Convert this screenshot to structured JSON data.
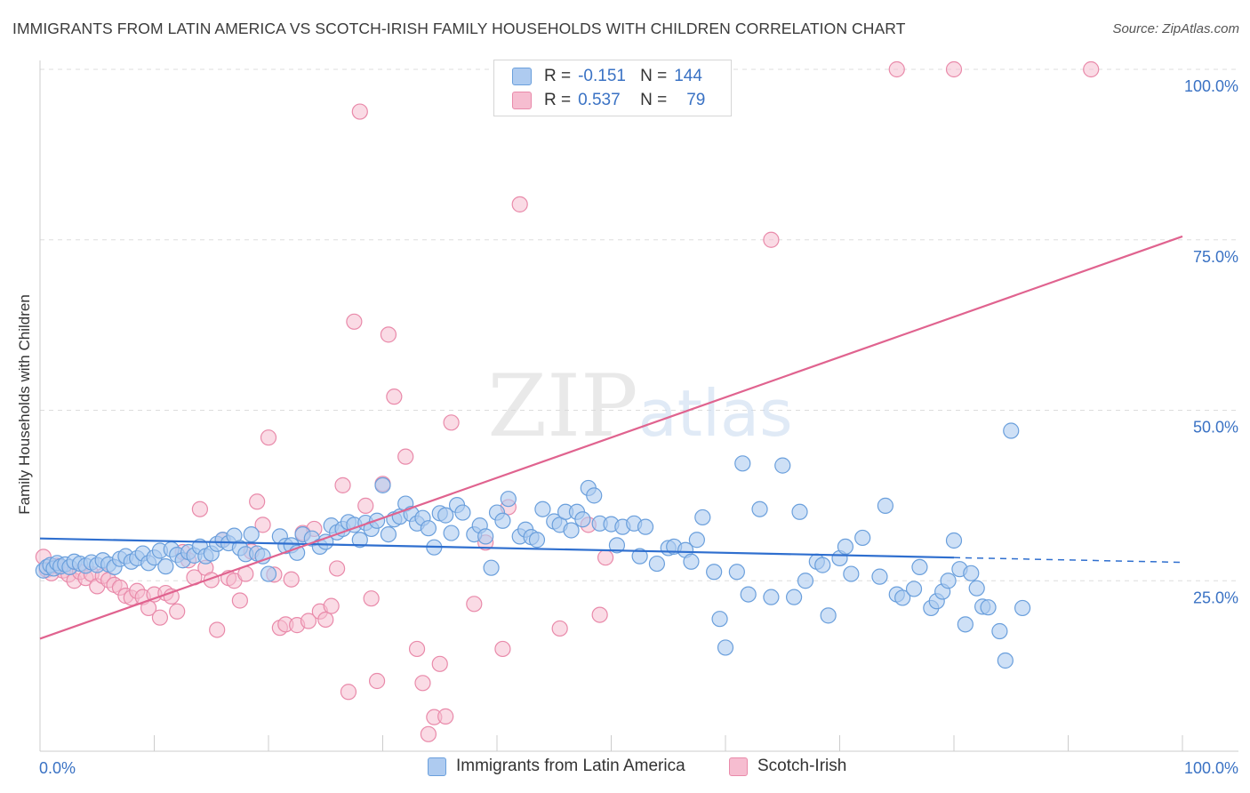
{
  "title": "IMMIGRANTS FROM LATIN AMERICA VS SCOTCH-IRISH FAMILY HOUSEHOLDS WITH CHILDREN CORRELATION CHART",
  "source": "Source: ZipAtlas.com",
  "watermark": "ZIPatlas",
  "legend": {
    "rows": [
      {
        "r_label": "R =",
        "r_value": "-0.151",
        "n_label": "N =",
        "n_value": "144"
      },
      {
        "r_label": "R =",
        "r_value": "0.537",
        "n_label": "N =",
        "n_value": "79"
      }
    ]
  },
  "bottom_legend": {
    "items": [
      {
        "label": "Immigrants from Latin America"
      },
      {
        "label": "Scotch-Irish"
      }
    ]
  },
  "colors": {
    "blue_fill": "#aecbf0",
    "blue_stroke": "#6a9fdc",
    "blue_line": "#2f6fcf",
    "pink_fill": "#f6bdd0",
    "pink_stroke": "#e98aaa",
    "pink_line": "#e0638f",
    "axis_label": "#3a72c4",
    "grid": "#dddddd"
  },
  "chart_data": {
    "type": "scatter",
    "title": "IMMIGRANTS FROM LATIN AMERICA VS SCOTCH-IRISH FAMILY HOUSEHOLDS WITH CHILDREN CORRELATION CHART",
    "xlabel": "",
    "ylabel": "Family Households with Children",
    "xlim": [
      0,
      100
    ],
    "ylim": [
      0,
      100
    ],
    "x_tick_labels": [
      "0.0%",
      "100.0%"
    ],
    "y_tick_labels": [
      "25.0%",
      "50.0%",
      "75.0%",
      "100.0%"
    ],
    "y_ticks": [
      25,
      50,
      75,
      100
    ],
    "legend_position": "top-center",
    "grid": true,
    "series": [
      {
        "name": "Immigrants from Latin America",
        "color": "#aecbf0",
        "trend": {
          "x": [
            0,
            80,
            100
          ],
          "y": [
            31.2,
            28.4,
            27.7
          ],
          "solid_until_x": 80
        },
        "points": [
          [
            0.3,
            26.5
          ],
          [
            0.6,
            27.0
          ],
          [
            0.9,
            27.3
          ],
          [
            1.2,
            26.8
          ],
          [
            1.5,
            27.6
          ],
          [
            1.8,
            27.1
          ],
          [
            2.2,
            27.4
          ],
          [
            2.6,
            27.0
          ],
          [
            3.0,
            27.8
          ],
          [
            3.5,
            27.5
          ],
          [
            4.0,
            27.2
          ],
          [
            4.5,
            27.7
          ],
          [
            5.0,
            27.3
          ],
          [
            5.5,
            28.0
          ],
          [
            6.0,
            27.4
          ],
          [
            6.5,
            27.0
          ],
          [
            7.0,
            28.2
          ],
          [
            7.5,
            28.6
          ],
          [
            8.0,
            27.8
          ],
          [
            8.5,
            28.3
          ],
          [
            9.0,
            29.0
          ],
          [
            9.5,
            27.6
          ],
          [
            10.0,
            28.4
          ],
          [
            10.5,
            29.4
          ],
          [
            11.0,
            27.1
          ],
          [
            11.5,
            29.6
          ],
          [
            12.0,
            28.8
          ],
          [
            12.5,
            28.0
          ],
          [
            13.0,
            29.2
          ],
          [
            13.5,
            28.7
          ],
          [
            14.0,
            30.0
          ],
          [
            14.5,
            28.6
          ],
          [
            15.0,
            29.0
          ],
          [
            15.5,
            30.4
          ],
          [
            16.0,
            31.0
          ],
          [
            16.5,
            30.5
          ],
          [
            17.0,
            31.6
          ],
          [
            17.5,
            29.8
          ],
          [
            18.0,
            28.9
          ],
          [
            18.5,
            31.8
          ],
          [
            19.0,
            29.0
          ],
          [
            19.5,
            28.6
          ],
          [
            20.0,
            26.0
          ],
          [
            21.0,
            31.5
          ],
          [
            21.5,
            30.1
          ],
          [
            22.0,
            30.2
          ],
          [
            22.5,
            29.1
          ],
          [
            23.0,
            31.8
          ],
          [
            23.8,
            31.2
          ],
          [
            24.5,
            30.0
          ],
          [
            25.0,
            30.7
          ],
          [
            25.5,
            33.1
          ],
          [
            26.0,
            32.1
          ],
          [
            26.5,
            32.6
          ],
          [
            27.0,
            33.6
          ],
          [
            27.5,
            33.2
          ],
          [
            28.0,
            31.0
          ],
          [
            28.5,
            33.5
          ],
          [
            29.0,
            32.6
          ],
          [
            29.5,
            33.8
          ],
          [
            30.0,
            39.0
          ],
          [
            30.5,
            31.8
          ],
          [
            31.0,
            34.0
          ],
          [
            31.5,
            34.4
          ],
          [
            32.0,
            36.3
          ],
          [
            32.5,
            34.8
          ],
          [
            33.0,
            33.4
          ],
          [
            33.5,
            34.2
          ],
          [
            34.0,
            32.7
          ],
          [
            34.5,
            29.9
          ],
          [
            35.0,
            34.9
          ],
          [
            35.5,
            34.6
          ],
          [
            36.0,
            32.0
          ],
          [
            36.5,
            36.1
          ],
          [
            37.0,
            35.0
          ],
          [
            38.0,
            31.8
          ],
          [
            38.5,
            33.1
          ],
          [
            39.0,
            31.5
          ],
          [
            39.5,
            26.9
          ],
          [
            40.0,
            35.0
          ],
          [
            40.5,
            33.8
          ],
          [
            41.0,
            37.0
          ],
          [
            42.0,
            31.5
          ],
          [
            42.5,
            32.5
          ],
          [
            43.0,
            31.4
          ],
          [
            43.5,
            31.0
          ],
          [
            44.0,
            35.5
          ],
          [
            45.0,
            33.7
          ],
          [
            45.5,
            33.2
          ],
          [
            46.0,
            35.1
          ],
          [
            46.5,
            32.4
          ],
          [
            47.0,
            35.1
          ],
          [
            47.5,
            34.0
          ],
          [
            48.0,
            38.6
          ],
          [
            48.5,
            37.5
          ],
          [
            49.0,
            33.4
          ],
          [
            50.0,
            33.3
          ],
          [
            50.5,
            30.2
          ],
          [
            51.0,
            32.9
          ],
          [
            52.0,
            33.4
          ],
          [
            52.5,
            28.6
          ],
          [
            53.0,
            32.9
          ],
          [
            54.0,
            27.5
          ],
          [
            55.0,
            29.8
          ],
          [
            55.5,
            30.0
          ],
          [
            56.5,
            29.5
          ],
          [
            57.0,
            27.8
          ],
          [
            57.5,
            31.0
          ],
          [
            58.0,
            34.3
          ],
          [
            59.0,
            26.3
          ],
          [
            59.5,
            19.4
          ],
          [
            60.0,
            15.2
          ],
          [
            61.0,
            26.3
          ],
          [
            61.5,
            42.2
          ],
          [
            62.0,
            23.0
          ],
          [
            63.0,
            35.5
          ],
          [
            64.0,
            22.6
          ],
          [
            65.0,
            41.9
          ],
          [
            66.0,
            22.6
          ],
          [
            66.5,
            35.1
          ],
          [
            67.0,
            25.0
          ],
          [
            68.0,
            27.8
          ],
          [
            68.5,
            27.3
          ],
          [
            69.0,
            19.9
          ],
          [
            70.0,
            28.3
          ],
          [
            70.5,
            30.0
          ],
          [
            71.0,
            26.0
          ],
          [
            72.0,
            31.3
          ],
          [
            73.5,
            25.6
          ],
          [
            74.0,
            36.0
          ],
          [
            75.0,
            23.0
          ],
          [
            75.5,
            22.5
          ],
          [
            76.5,
            23.8
          ],
          [
            77.0,
            27.0
          ],
          [
            78.0,
            21.0
          ],
          [
            78.5,
            22.0
          ],
          [
            79.0,
            23.4
          ],
          [
            79.5,
            25.0
          ],
          [
            80.0,
            30.9
          ],
          [
            80.5,
            26.7
          ],
          [
            81.0,
            18.6
          ],
          [
            81.5,
            26.1
          ],
          [
            82.0,
            23.9
          ],
          [
            82.5,
            21.2
          ],
          [
            83.0,
            21.1
          ],
          [
            84.0,
            17.6
          ],
          [
            84.5,
            13.3
          ],
          [
            85.0,
            47.0
          ],
          [
            86.0,
            21.0
          ]
        ]
      },
      {
        "name": "Scotch-Irish",
        "color": "#f6bdd0",
        "trend": {
          "x": [
            0,
            100
          ],
          "y": [
            16.5,
            75.5
          ]
        },
        "points": [
          [
            0.3,
            28.5
          ],
          [
            0.6,
            26.6
          ],
          [
            1.0,
            26.1
          ],
          [
            1.5,
            27.2
          ],
          [
            2.0,
            26.5
          ],
          [
            2.5,
            25.9
          ],
          [
            3.0,
            25.0
          ],
          [
            3.5,
            26.3
          ],
          [
            4.0,
            25.4
          ],
          [
            4.5,
            26.0
          ],
          [
            5.0,
            24.2
          ],
          [
            5.5,
            25.7
          ],
          [
            6.0,
            25.1
          ],
          [
            6.5,
            24.4
          ],
          [
            7.0,
            24.0
          ],
          [
            7.5,
            22.8
          ],
          [
            8.0,
            22.5
          ],
          [
            8.5,
            23.5
          ],
          [
            9.0,
            22.6
          ],
          [
            9.5,
            21.0
          ],
          [
            10.0,
            23.0
          ],
          [
            10.5,
            19.6
          ],
          [
            11.0,
            23.2
          ],
          [
            11.5,
            22.7
          ],
          [
            12.0,
            20.5
          ],
          [
            12.5,
            29.2
          ],
          [
            13.0,
            28.0
          ],
          [
            13.5,
            25.5
          ],
          [
            14.0,
            35.5
          ],
          [
            14.5,
            26.9
          ],
          [
            15.0,
            25.1
          ],
          [
            15.5,
            17.8
          ],
          [
            16.0,
            31.0
          ],
          [
            16.5,
            25.4
          ],
          [
            17.0,
            25.0
          ],
          [
            17.5,
            22.1
          ],
          [
            18.0,
            26.0
          ],
          [
            18.5,
            29.3
          ],
          [
            19.0,
            36.6
          ],
          [
            19.5,
            33.2
          ],
          [
            20.0,
            46.0
          ],
          [
            20.5,
            25.9
          ],
          [
            21.0,
            18.1
          ],
          [
            21.5,
            18.6
          ],
          [
            22.0,
            25.2
          ],
          [
            22.5,
            18.5
          ],
          [
            23.0,
            32.0
          ],
          [
            23.5,
            19.1
          ],
          [
            24.0,
            32.6
          ],
          [
            24.5,
            20.5
          ],
          [
            25.0,
            19.3
          ],
          [
            25.5,
            21.3
          ],
          [
            26.0,
            26.8
          ],
          [
            26.5,
            39.0
          ],
          [
            27.0,
            8.7
          ],
          [
            27.5,
            63.0
          ],
          [
            28.0,
            93.8
          ],
          [
            28.5,
            36.0
          ],
          [
            29.0,
            22.4
          ],
          [
            29.5,
            10.3
          ],
          [
            30.0,
            39.2
          ],
          [
            30.5,
            61.1
          ],
          [
            31.0,
            52.0
          ],
          [
            32.0,
            43.2
          ],
          [
            33.0,
            15.0
          ],
          [
            33.5,
            10.0
          ],
          [
            34.0,
            2.5
          ],
          [
            34.5,
            5.0
          ],
          [
            35.0,
            12.8
          ],
          [
            35.5,
            5.1
          ],
          [
            36.0,
            48.2
          ],
          [
            38.0,
            21.6
          ],
          [
            39.0,
            30.6
          ],
          [
            40.5,
            15.0
          ],
          [
            41.0,
            35.8
          ],
          [
            42.0,
            80.2
          ],
          [
            45.5,
            18.0
          ],
          [
            48.0,
            33.2
          ],
          [
            49.0,
            20.0
          ],
          [
            49.5,
            28.4
          ],
          [
            64.0,
            75.0
          ],
          [
            75.0,
            100.0
          ],
          [
            80.0,
            100.0
          ],
          [
            92.0,
            100.0
          ]
        ]
      }
    ]
  }
}
